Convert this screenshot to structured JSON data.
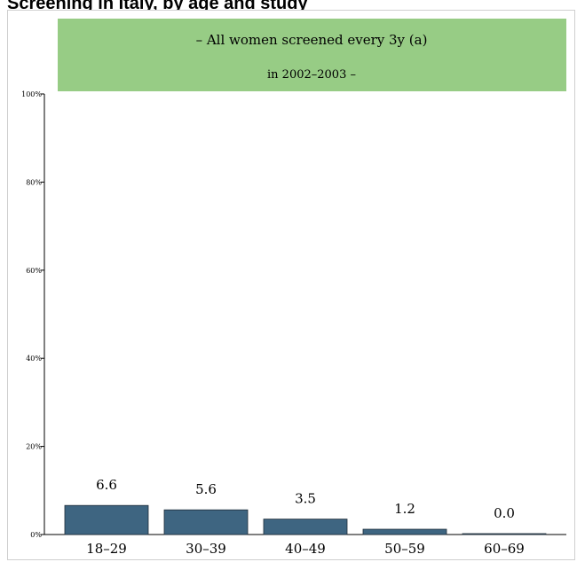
{
  "title": "Screening in Italy, by age and study",
  "banner": {
    "line1": "– All women screened every 3y (a)",
    "line2": "in 2002–2003 –",
    "color": "#97cc85"
  },
  "chart_data": {
    "type": "bar",
    "categories": [
      "18–29",
      "30–39",
      "40–49",
      "50–59",
      "60–69"
    ],
    "values": [
      6.6,
      5.6,
      3.5,
      1.2,
      0.0
    ],
    "value_labels": [
      "6.6",
      "5.6",
      "3.5",
      "1.2",
      "0.0"
    ],
    "yticks": [
      "0%",
      "20%",
      "40%",
      "60%",
      "80%",
      "100%"
    ],
    "ylim": [
      0,
      100
    ],
    "bar_color": "#3e6581",
    "grid": false
  }
}
